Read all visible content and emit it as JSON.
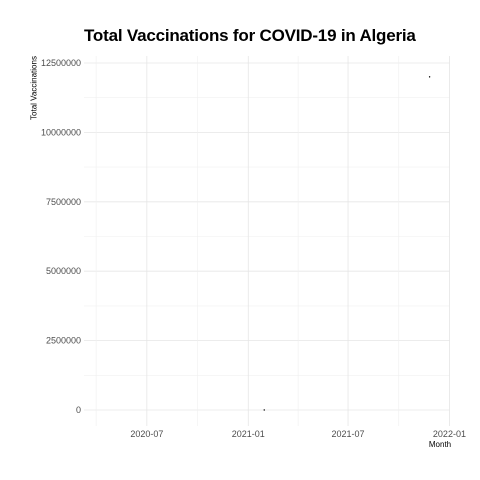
{
  "chart_data": {
    "type": "scatter",
    "title": "Total Vaccinations for COVID-19 in Algeria",
    "xlabel": "Month",
    "ylabel": "Total Vaccinations",
    "x_ticks": [
      "2020-07",
      "2021-01",
      "2021-07",
      "2022-01"
    ],
    "y_ticks": [
      "0",
      "2500000",
      "5000000",
      "7500000",
      "10000000",
      "12500000"
    ],
    "xlim": [
      "2020-03-09",
      "2022-01-02"
    ],
    "ylim": [
      0,
      12500000
    ],
    "grid": true,
    "points": [
      {
        "x": "2021-01-30",
        "y": 0
      },
      {
        "x": "2021-11-26",
        "y": 12000000
      }
    ]
  }
}
